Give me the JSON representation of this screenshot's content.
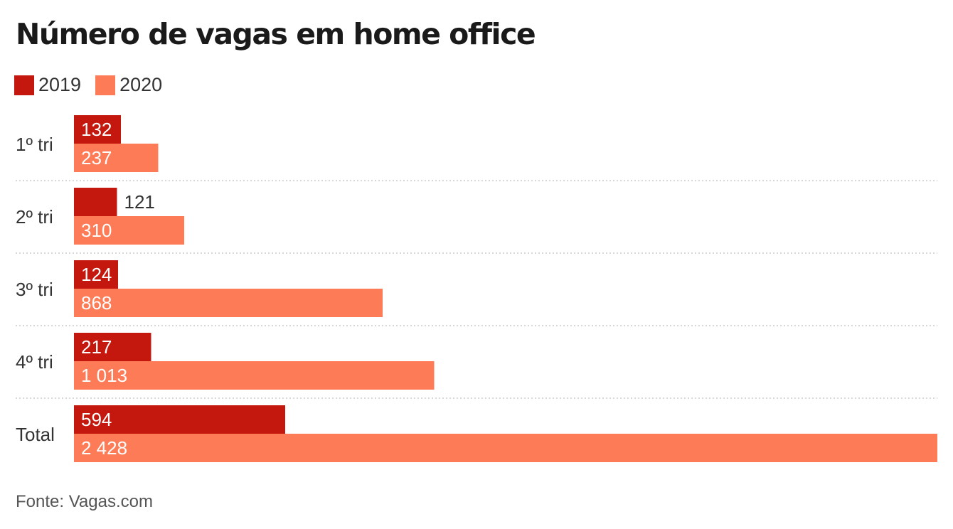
{
  "title": "Número de vagas em home office",
  "source": "Fonte: Vagas.com",
  "colors": {
    "y2019": "#c4180f",
    "y2020": "#fe7b57",
    "label_dark": "#333333",
    "label_light": "#ffffff",
    "separator": "#cccccc"
  },
  "legend": [
    {
      "label": "2019",
      "color": "#c4180f"
    },
    {
      "label": "2020",
      "color": "#fe7b57"
    }
  ],
  "chart_data": {
    "type": "bar",
    "orientation": "horizontal",
    "categories": [
      "1º tri",
      "2º tri",
      "3º tri",
      "4º tri",
      "Total"
    ],
    "series": [
      {
        "name": "2019",
        "values": [
          132,
          121,
          124,
          217,
          594
        ],
        "labels": [
          "132",
          "121",
          "124",
          "217",
          "594"
        ]
      },
      {
        "name": "2020",
        "values": [
          237,
          310,
          868,
          1013,
          2428
        ],
        "labels": [
          "237",
          "310",
          "868",
          "1 013",
          "2 428"
        ]
      }
    ],
    "xlim": [
      0,
      2428
    ],
    "grid": false,
    "legend_position": "top-left"
  }
}
